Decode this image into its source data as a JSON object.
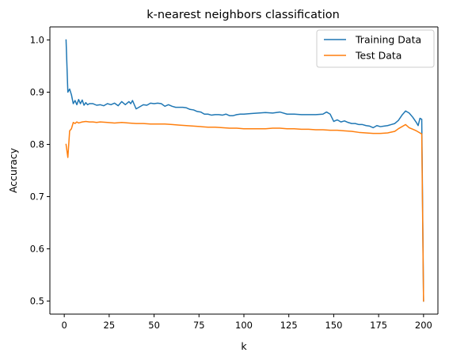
{
  "chart_data": {
    "type": "line",
    "title": "k-nearest neighbors classification",
    "xlabel": "k",
    "ylabel": "Accuracy",
    "xlim": [
      -8,
      208
    ],
    "ylim": [
      0.475,
      1.025
    ],
    "xticks": [
      0,
      25,
      50,
      75,
      100,
      125,
      150,
      175,
      200
    ],
    "yticks": [
      0.5,
      0.6,
      0.7,
      0.8,
      0.9,
      1.0
    ],
    "ytick_labels": [
      "0.5",
      "0.6",
      "0.7",
      "0.8",
      "0.9",
      "1.0"
    ],
    "grid": false,
    "legend_position": "upper-right",
    "series": [
      {
        "name": "Training Data",
        "color": "#1f77b4",
        "points": [
          [
            1,
            1.0
          ],
          [
            2,
            0.9
          ],
          [
            3,
            0.906
          ],
          [
            4,
            0.895
          ],
          [
            5,
            0.878
          ],
          [
            6,
            0.884
          ],
          [
            7,
            0.876
          ],
          [
            8,
            0.886
          ],
          [
            9,
            0.878
          ],
          [
            10,
            0.885
          ],
          [
            11,
            0.875
          ],
          [
            12,
            0.88
          ],
          [
            13,
            0.876
          ],
          [
            14,
            0.878
          ],
          [
            16,
            0.878
          ],
          [
            18,
            0.875
          ],
          [
            20,
            0.876
          ],
          [
            22,
            0.874
          ],
          [
            24,
            0.878
          ],
          [
            26,
            0.876
          ],
          [
            28,
            0.879
          ],
          [
            30,
            0.874
          ],
          [
            32,
            0.882
          ],
          [
            34,
            0.876
          ],
          [
            36,
            0.882
          ],
          [
            37,
            0.878
          ],
          [
            38,
            0.884
          ],
          [
            40,
            0.868
          ],
          [
            42,
            0.872
          ],
          [
            44,
            0.876
          ],
          [
            46,
            0.875
          ],
          [
            48,
            0.879
          ],
          [
            50,
            0.878
          ],
          [
            52,
            0.879
          ],
          [
            54,
            0.878
          ],
          [
            56,
            0.873
          ],
          [
            58,
            0.876
          ],
          [
            60,
            0.873
          ],
          [
            62,
            0.871
          ],
          [
            64,
            0.871
          ],
          [
            66,
            0.871
          ],
          [
            68,
            0.87
          ],
          [
            70,
            0.867
          ],
          [
            72,
            0.866
          ],
          [
            74,
            0.863
          ],
          [
            76,
            0.862
          ],
          [
            78,
            0.858
          ],
          [
            80,
            0.858
          ],
          [
            82,
            0.856
          ],
          [
            84,
            0.857
          ],
          [
            86,
            0.857
          ],
          [
            88,
            0.856
          ],
          [
            90,
            0.858
          ],
          [
            92,
            0.855
          ],
          [
            94,
            0.855
          ],
          [
            96,
            0.857
          ],
          [
            98,
            0.858
          ],
          [
            100,
            0.858
          ],
          [
            104,
            0.859
          ],
          [
            108,
            0.86
          ],
          [
            112,
            0.861
          ],
          [
            116,
            0.86
          ],
          [
            120,
            0.862
          ],
          [
            124,
            0.858
          ],
          [
            128,
            0.858
          ],
          [
            132,
            0.857
          ],
          [
            136,
            0.857
          ],
          [
            140,
            0.857
          ],
          [
            144,
            0.858
          ],
          [
            146,
            0.862
          ],
          [
            148,
            0.858
          ],
          [
            150,
            0.844
          ],
          [
            152,
            0.847
          ],
          [
            154,
            0.843
          ],
          [
            156,
            0.845
          ],
          [
            158,
            0.842
          ],
          [
            160,
            0.84
          ],
          [
            162,
            0.84
          ],
          [
            164,
            0.838
          ],
          [
            166,
            0.838
          ],
          [
            168,
            0.836
          ],
          [
            170,
            0.835
          ],
          [
            172,
            0.832
          ],
          [
            174,
            0.836
          ],
          [
            176,
            0.834
          ],
          [
            178,
            0.835
          ],
          [
            180,
            0.836
          ],
          [
            182,
            0.838
          ],
          [
            184,
            0.84
          ],
          [
            186,
            0.846
          ],
          [
            188,
            0.856
          ],
          [
            190,
            0.864
          ],
          [
            192,
            0.86
          ],
          [
            194,
            0.852
          ],
          [
            196,
            0.842
          ],
          [
            197,
            0.836
          ],
          [
            198,
            0.85
          ],
          [
            199,
            0.848
          ],
          [
            200,
            0.5
          ]
        ]
      },
      {
        "name": "Test Data",
        "color": "#ff7f0e",
        "points": [
          [
            1,
            0.8
          ],
          [
            2,
            0.775
          ],
          [
            3,
            0.826
          ],
          [
            4,
            0.83
          ],
          [
            5,
            0.842
          ],
          [
            6,
            0.84
          ],
          [
            7,
            0.843
          ],
          [
            8,
            0.841
          ],
          [
            10,
            0.843
          ],
          [
            12,
            0.844
          ],
          [
            14,
            0.843
          ],
          [
            16,
            0.843
          ],
          [
            18,
            0.842
          ],
          [
            20,
            0.843
          ],
          [
            24,
            0.842
          ],
          [
            28,
            0.841
          ],
          [
            32,
            0.842
          ],
          [
            36,
            0.841
          ],
          [
            40,
            0.84
          ],
          [
            44,
            0.84
          ],
          [
            48,
            0.839
          ],
          [
            52,
            0.839
          ],
          [
            56,
            0.839
          ],
          [
            60,
            0.838
          ],
          [
            64,
            0.837
          ],
          [
            68,
            0.836
          ],
          [
            72,
            0.835
          ],
          [
            76,
            0.834
          ],
          [
            80,
            0.833
          ],
          [
            84,
            0.833
          ],
          [
            88,
            0.832
          ],
          [
            92,
            0.831
          ],
          [
            96,
            0.831
          ],
          [
            100,
            0.83
          ],
          [
            104,
            0.83
          ],
          [
            108,
            0.83
          ],
          [
            112,
            0.83
          ],
          [
            116,
            0.831
          ],
          [
            120,
            0.831
          ],
          [
            124,
            0.83
          ],
          [
            128,
            0.83
          ],
          [
            132,
            0.829
          ],
          [
            136,
            0.829
          ],
          [
            140,
            0.828
          ],
          [
            144,
            0.828
          ],
          [
            148,
            0.827
          ],
          [
            152,
            0.827
          ],
          [
            156,
            0.826
          ],
          [
            160,
            0.825
          ],
          [
            164,
            0.823
          ],
          [
            168,
            0.822
          ],
          [
            172,
            0.821
          ],
          [
            176,
            0.821
          ],
          [
            180,
            0.822
          ],
          [
            184,
            0.825
          ],
          [
            186,
            0.83
          ],
          [
            188,
            0.834
          ],
          [
            190,
            0.838
          ],
          [
            192,
            0.832
          ],
          [
            194,
            0.829
          ],
          [
            196,
            0.826
          ],
          [
            198,
            0.822
          ],
          [
            199,
            0.82
          ],
          [
            200,
            0.5
          ]
        ]
      }
    ]
  }
}
